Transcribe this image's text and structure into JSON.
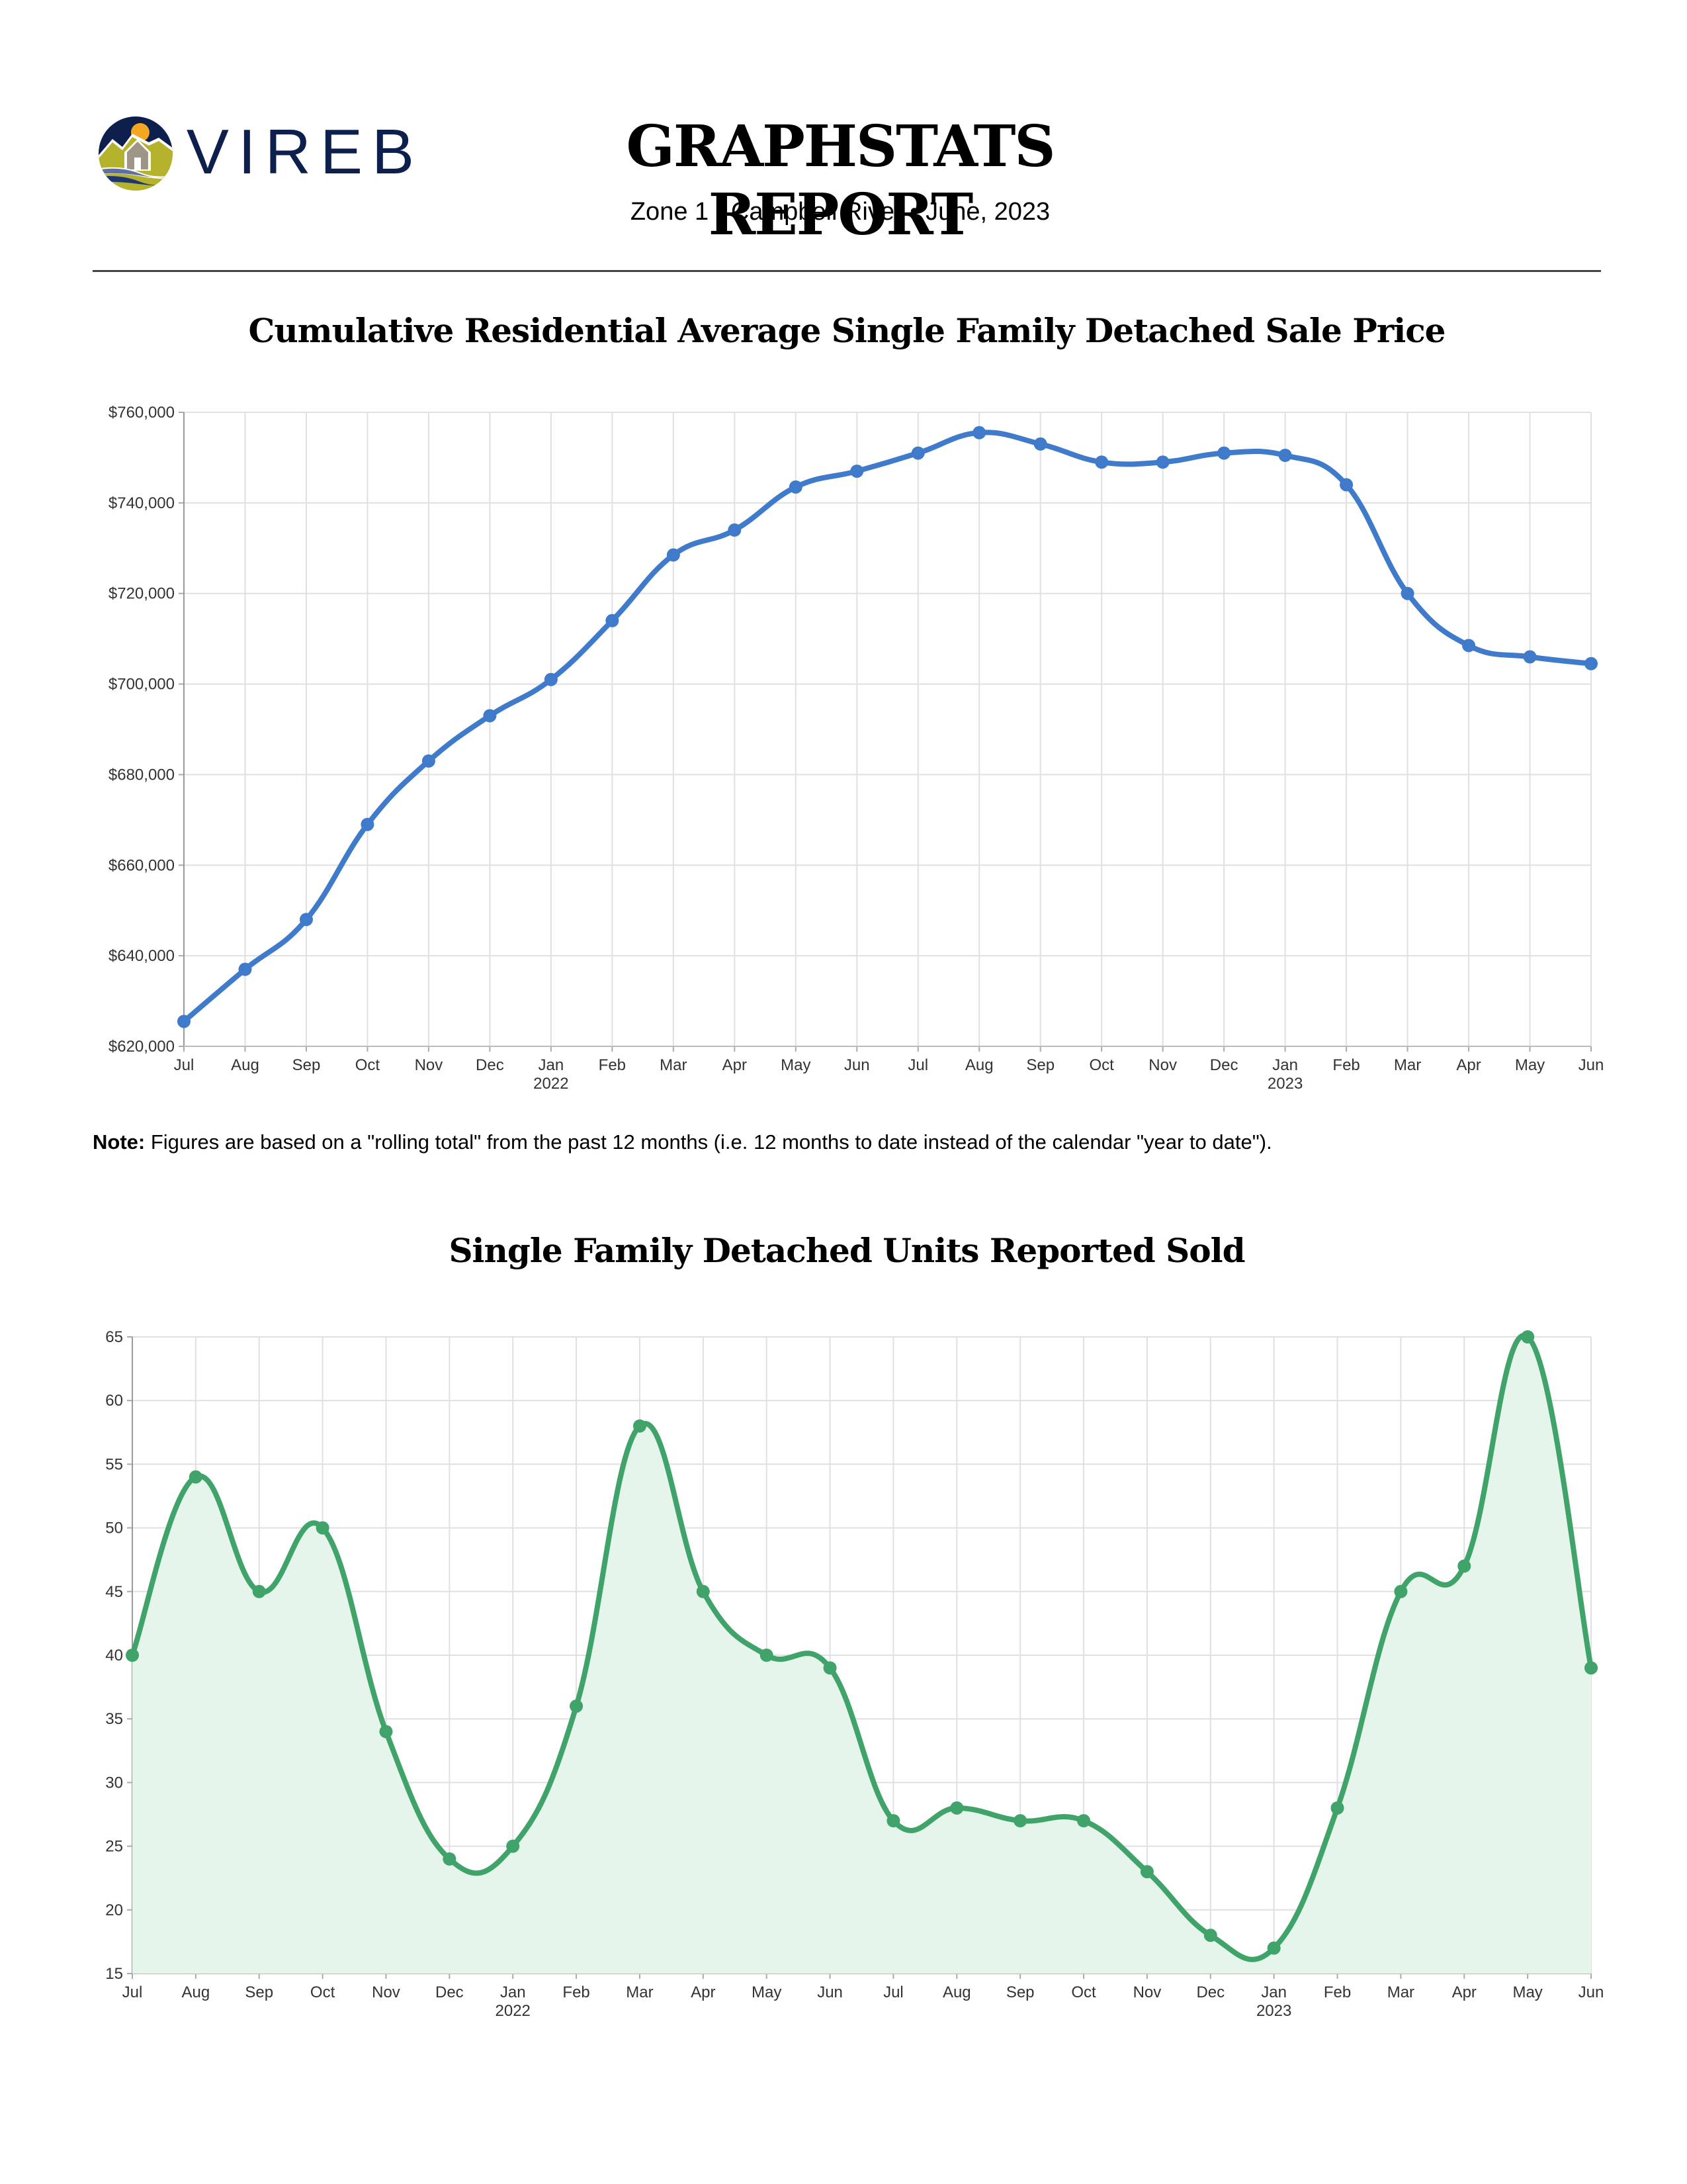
{
  "header": {
    "logo_text": "VIREB",
    "title": "GRAPHSTATS REPORT",
    "subtitle": "Zone 1 - Campbell River • June, 2023"
  },
  "note": {
    "label": "Note:",
    "text": " Figures are based on a \"rolling total\" from the past 12 months (i.e. 12 months to date instead of the calendar \"year to date\")."
  },
  "colors": {
    "price_line": "#3f7acb",
    "units_line": "#3fa36a",
    "units_fill": "#e5f5ec",
    "grid": "#e0e0e0",
    "logo_navy": "#0d1f4c"
  },
  "chart_data": [
    {
      "type": "line",
      "title": "Cumulative Residential Average Single Family Detached Sale Price",
      "xlabel": "",
      "ylabel": "",
      "categories": [
        "Jul",
        "Aug",
        "Sep",
        "Oct",
        "Nov",
        "Dec",
        "Jan",
        "Feb",
        "Mar",
        "Apr",
        "May",
        "Jun",
        "Jul",
        "Aug",
        "Sep",
        "Oct",
        "Nov",
        "Dec",
        "Jan",
        "Feb",
        "Mar",
        "Apr",
        "May",
        "Jun"
      ],
      "year_labels": {
        "6": "2022",
        "18": "2023"
      },
      "series": [
        {
          "name": "Average Sale Price",
          "values": [
            625500,
            637000,
            648000,
            669000,
            683000,
            693000,
            701000,
            714000,
            728500,
            734000,
            743500,
            747000,
            751000,
            755500,
            753000,
            749000,
            749000,
            751000,
            750500,
            744000,
            720000,
            708500,
            706000,
            704500
          ]
        }
      ],
      "ylim": [
        620000,
        760000
      ],
      "yticks": [
        620000,
        640000,
        660000,
        680000,
        700000,
        720000,
        740000,
        760000
      ],
      "ytick_labels": [
        "$620,000",
        "$640,000",
        "$660,000",
        "$680,000",
        "$700,000",
        "$720,000",
        "$740,000",
        "$760,000"
      ],
      "grid": true,
      "smooth": true,
      "legend": "none"
    },
    {
      "type": "area",
      "title": "Single Family Detached Units Reported Sold",
      "xlabel": "",
      "ylabel": "",
      "categories": [
        "Jul",
        "Aug",
        "Sep",
        "Oct",
        "Nov",
        "Dec",
        "Jan",
        "Feb",
        "Mar",
        "Apr",
        "May",
        "Jun",
        "Jul",
        "Aug",
        "Sep",
        "Oct",
        "Nov",
        "Dec",
        "Jan",
        "Feb",
        "Mar",
        "Apr",
        "May",
        "Jun"
      ],
      "year_labels": {
        "6": "2022",
        "18": "2023"
      },
      "series": [
        {
          "name": "Units Sold",
          "values": [
            40,
            54,
            45,
            50,
            34,
            24,
            25,
            36,
            58,
            45,
            40,
            39,
            27,
            28,
            27,
            27,
            23,
            18,
            17,
            28,
            45,
            47,
            65,
            39
          ]
        }
      ],
      "ylim": [
        15,
        65
      ],
      "yticks": [
        15,
        20,
        25,
        30,
        35,
        40,
        45,
        50,
        55,
        60,
        65
      ],
      "ytick_labels": [
        "15",
        "20",
        "25",
        "30",
        "35",
        "40",
        "45",
        "50",
        "55",
        "60",
        "65"
      ],
      "grid": true,
      "smooth": true,
      "legend": "none"
    }
  ]
}
